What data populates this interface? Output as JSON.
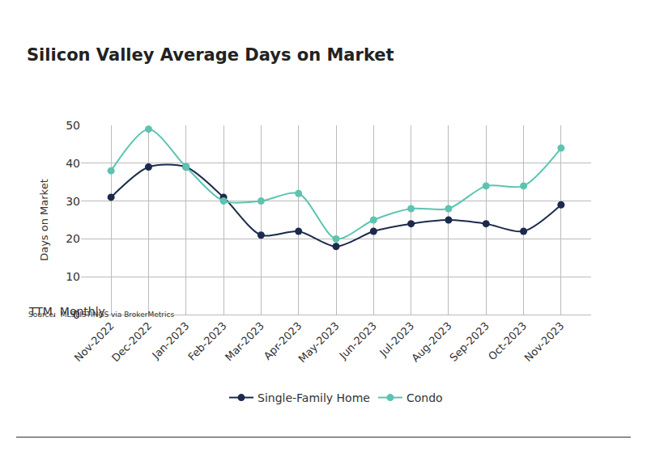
{
  "chart_data": {
    "type": "line",
    "title": "Silicon Valley Average Days on Market",
    "subtitle": "TTM, Monthly",
    "y_label": "Days on Market",
    "source": "Source:  MLSLISTINGS via BrokerMetrics",
    "categories": [
      "Nov-2022",
      "Dec-2022",
      "Jan-2023",
      "Feb-2023",
      "Mar-2023",
      "Apr-2023",
      "May-2023",
      "Jun-2023",
      "Jul-2023",
      "Aug-2023",
      "Sep-2023",
      "Oct-2023",
      "Nov-2023"
    ],
    "series": [
      {
        "name": "Single-Family Home",
        "color": "#1c2a4d",
        "values": [
          31,
          39,
          39,
          31,
          21,
          22,
          18,
          22,
          24,
          25,
          24,
          22,
          29
        ]
      },
      {
        "name": "Condo",
        "color": "#5cc4b0",
        "values": [
          38,
          49,
          39,
          30,
          30,
          32,
          20,
          25,
          28,
          28,
          34,
          34,
          44
        ]
      }
    ],
    "ylim": [
      0,
      50
    ],
    "yticks": [
      0,
      10,
      20,
      30,
      40,
      50
    ],
    "grid": true,
    "legend": "bottom",
    "marker": "circle",
    "line_style": "solid"
  }
}
